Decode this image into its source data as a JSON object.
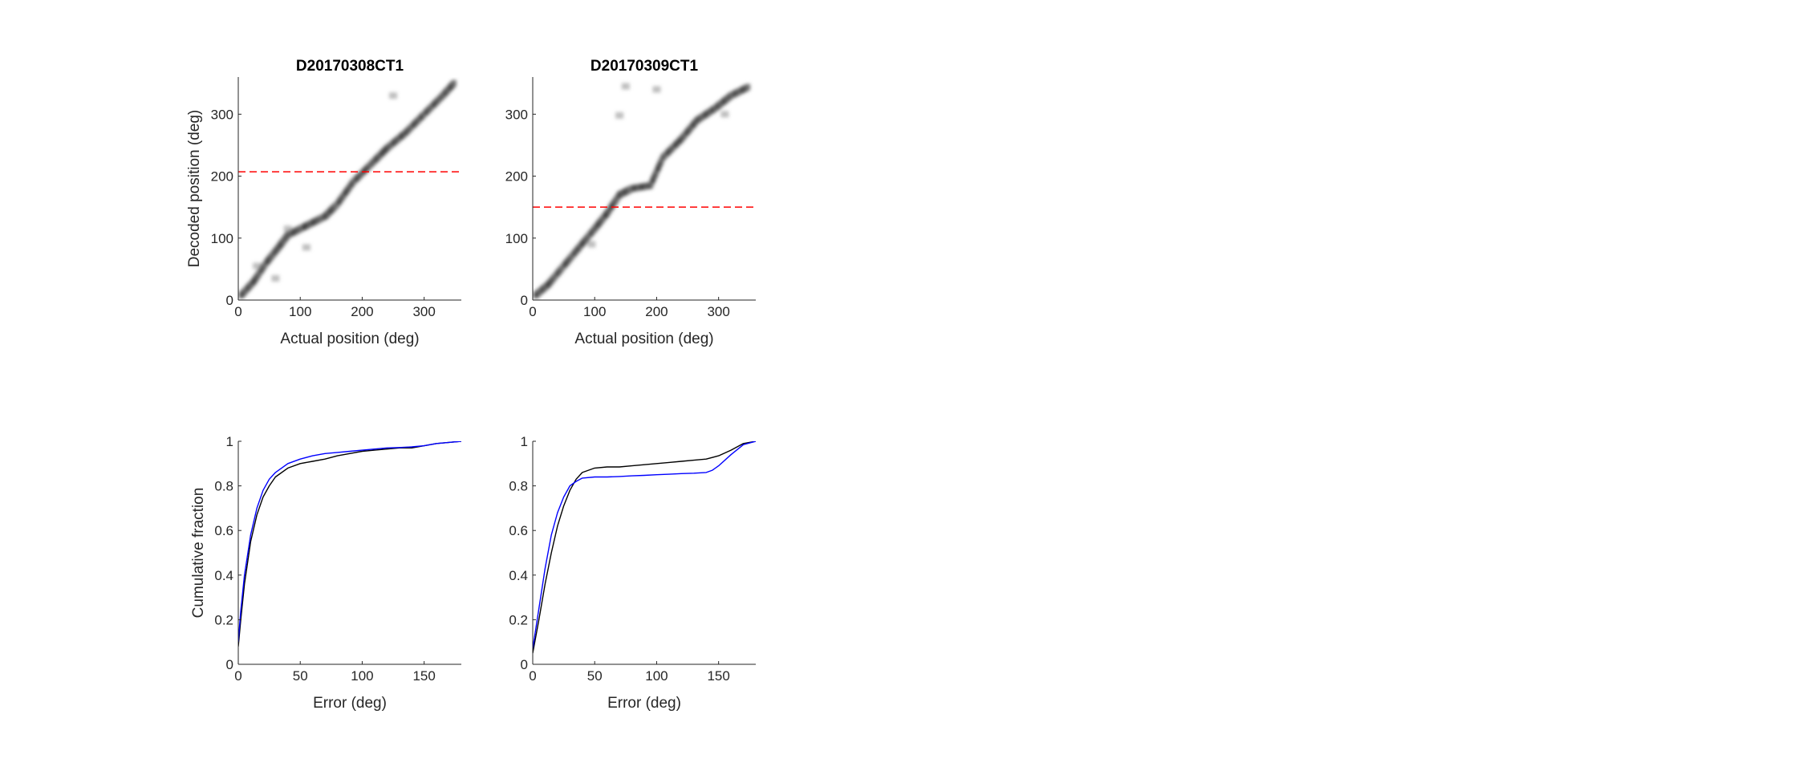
{
  "chart_data": [
    {
      "id": "heat1",
      "type": "heatmap",
      "title": "D20170308CT1",
      "xlabel": "Actual position (deg)",
      "ylabel": "Decoded position (deg)",
      "xlim": [
        0,
        360
      ],
      "ylim": [
        0,
        360
      ],
      "xticks": [
        0,
        100,
        200,
        300
      ],
      "yticks": [
        0,
        100,
        200,
        300
      ],
      "colormap": "gray-inverted",
      "reference_line": {
        "y": 207,
        "color": "#ff0000",
        "style": "dashed"
      },
      "dense_band": [
        {
          "x": 5,
          "y": 8
        },
        {
          "x": 25,
          "y": 30
        },
        {
          "x": 45,
          "y": 60
        },
        {
          "x": 65,
          "y": 85
        },
        {
          "x": 80,
          "y": 105
        },
        {
          "x": 110,
          "y": 120
        },
        {
          "x": 140,
          "y": 135
        },
        {
          "x": 160,
          "y": 155
        },
        {
          "x": 185,
          "y": 190
        },
        {
          "x": 215,
          "y": 220
        },
        {
          "x": 240,
          "y": 245
        },
        {
          "x": 270,
          "y": 270
        },
        {
          "x": 300,
          "y": 300
        },
        {
          "x": 330,
          "y": 330
        },
        {
          "x": 350,
          "y": 352
        }
      ],
      "secondary_blobs": [
        {
          "x": 110,
          "y": 85
        },
        {
          "x": 60,
          "y": 35
        },
        {
          "x": 80,
          "y": 115
        },
        {
          "x": 250,
          "y": 330
        },
        {
          "x": 30,
          "y": 55
        }
      ]
    },
    {
      "id": "heat2",
      "type": "heatmap",
      "title": "D20170309CT1",
      "xlabel": "Actual position (deg)",
      "ylabel": "",
      "xlim": [
        0,
        360
      ],
      "ylim": [
        0,
        360
      ],
      "xticks": [
        0,
        100,
        200,
        300
      ],
      "yticks": [
        0,
        100,
        200,
        300
      ],
      "colormap": "gray-inverted",
      "reference_line": {
        "y": 150,
        "color": "#ff0000",
        "style": "dashed"
      },
      "dense_band": [
        {
          "x": 5,
          "y": 8
        },
        {
          "x": 25,
          "y": 25
        },
        {
          "x": 50,
          "y": 55
        },
        {
          "x": 75,
          "y": 85
        },
        {
          "x": 100,
          "y": 115
        },
        {
          "x": 120,
          "y": 140
        },
        {
          "x": 140,
          "y": 170
        },
        {
          "x": 160,
          "y": 180
        },
        {
          "x": 190,
          "y": 185
        },
        {
          "x": 210,
          "y": 230
        },
        {
          "x": 240,
          "y": 260
        },
        {
          "x": 265,
          "y": 290
        },
        {
          "x": 295,
          "y": 310
        },
        {
          "x": 320,
          "y": 330
        },
        {
          "x": 350,
          "y": 345
        }
      ],
      "secondary_blobs": [
        {
          "x": 140,
          "y": 298
        },
        {
          "x": 150,
          "y": 345
        },
        {
          "x": 200,
          "y": 340
        },
        {
          "x": 95,
          "y": 90
        },
        {
          "x": 310,
          "y": 300
        }
      ]
    },
    {
      "id": "cdf1",
      "type": "line",
      "title": "",
      "xlabel": "Error (deg)",
      "ylabel": "Cumulative fraction",
      "xlim": [
        0,
        180
      ],
      "ylim": [
        0,
        1
      ],
      "xticks": [
        0,
        50,
        100,
        150
      ],
      "yticks": [
        0,
        0.2,
        0.4,
        0.6,
        0.8,
        1
      ],
      "series": [
        {
          "color": "#000000",
          "x": [
            0,
            2,
            5,
            10,
            15,
            20,
            25,
            30,
            40,
            50,
            60,
            70,
            80,
            90,
            100,
            110,
            120,
            130,
            140,
            150,
            160,
            170,
            180
          ],
          "y": [
            0.08,
            0.2,
            0.36,
            0.55,
            0.67,
            0.75,
            0.8,
            0.84,
            0.88,
            0.9,
            0.91,
            0.92,
            0.935,
            0.945,
            0.955,
            0.96,
            0.965,
            0.97,
            0.97,
            0.98,
            0.99,
            0.995,
            1.0
          ]
        },
        {
          "color": "#0000ff",
          "x": [
            0,
            2,
            5,
            10,
            15,
            20,
            25,
            30,
            40,
            50,
            60,
            70,
            80,
            90,
            100,
            110,
            120,
            130,
            140,
            150,
            160,
            170,
            180
          ],
          "y": [
            0.1,
            0.24,
            0.4,
            0.58,
            0.7,
            0.78,
            0.83,
            0.86,
            0.9,
            0.92,
            0.935,
            0.945,
            0.95,
            0.955,
            0.96,
            0.965,
            0.97,
            0.972,
            0.975,
            0.98,
            0.99,
            0.995,
            1.0
          ]
        }
      ]
    },
    {
      "id": "cdf2",
      "type": "line",
      "title": "",
      "xlabel": "Error (deg)",
      "ylabel": "",
      "xlim": [
        0,
        180
      ],
      "ylim": [
        0,
        1
      ],
      "xticks": [
        0,
        50,
        100,
        150
      ],
      "yticks": [
        0,
        0.2,
        0.4,
        0.6,
        0.8,
        1
      ],
      "series": [
        {
          "color": "#000000",
          "x": [
            0,
            5,
            10,
            15,
            20,
            25,
            30,
            35,
            40,
            50,
            60,
            70,
            80,
            90,
            100,
            110,
            120,
            130,
            140,
            150,
            160,
            170,
            180
          ],
          "y": [
            0.05,
            0.2,
            0.36,
            0.5,
            0.62,
            0.71,
            0.78,
            0.83,
            0.86,
            0.88,
            0.885,
            0.885,
            0.89,
            0.895,
            0.9,
            0.905,
            0.91,
            0.915,
            0.92,
            0.935,
            0.96,
            0.99,
            1.0
          ]
        },
        {
          "color": "#0000ff",
          "x": [
            0,
            5,
            10,
            15,
            20,
            25,
            30,
            35,
            40,
            50,
            60,
            70,
            80,
            90,
            100,
            110,
            120,
            130,
            140,
            145,
            150,
            160,
            170,
            180
          ],
          "y": [
            0.07,
            0.25,
            0.43,
            0.58,
            0.68,
            0.75,
            0.8,
            0.82,
            0.835,
            0.84,
            0.84,
            0.842,
            0.845,
            0.847,
            0.85,
            0.852,
            0.855,
            0.857,
            0.86,
            0.87,
            0.89,
            0.94,
            0.985,
            1.0
          ]
        }
      ]
    }
  ]
}
